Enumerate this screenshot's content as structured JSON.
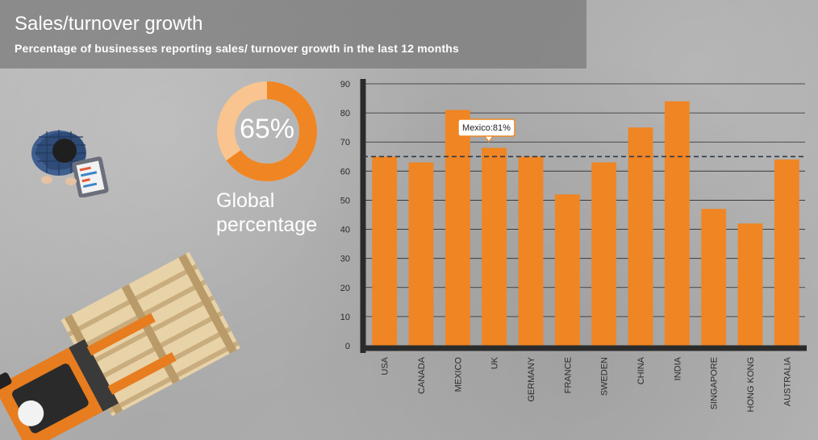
{
  "header": {
    "title": "Sales/turnover growth",
    "subtitle": "Percentage of businesses reporting sales/ turnover growth in the last 12 months"
  },
  "kpi": {
    "value": "65%",
    "percent": 65,
    "caption_line1": "Global",
    "caption_line2": "percentage"
  },
  "tooltip": {
    "text": "Mexico:81%"
  },
  "colors": {
    "bar": "#f08523",
    "donut_light": "#f9c48f",
    "axis": "#2b2b2b"
  },
  "chart_data": {
    "type": "bar",
    "categories": [
      "USA",
      "CANADA",
      "MEXICO",
      "UK",
      "GERMANY",
      "FRANCE",
      "SWEDEN",
      "CHINA",
      "INDIA",
      "SINGAPORE",
      "HONG KONG",
      "AUSTRALIA"
    ],
    "values": [
      65,
      63,
      81,
      68,
      65,
      52,
      63,
      75,
      84,
      47,
      42,
      64
    ],
    "ylim": [
      0,
      90
    ],
    "yticks": [
      0,
      10,
      20,
      30,
      40,
      50,
      60,
      70,
      80,
      90
    ],
    "reference_line": 65,
    "grid": true
  }
}
